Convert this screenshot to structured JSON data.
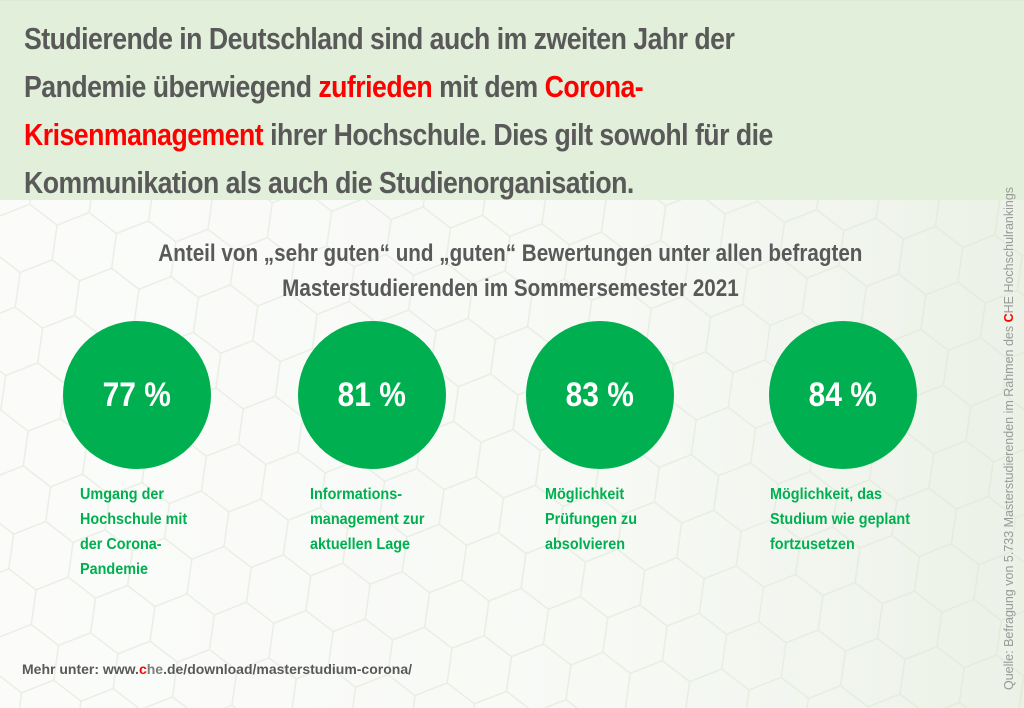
{
  "header": {
    "headline_parts": [
      {
        "text": "Studierende in Deutschland sind auch im zweiten Jahr der",
        "emphasis": false
      },
      {
        "text": "Pandemie überwiegend ",
        "emphasis": false
      },
      {
        "text": "zufrieden",
        "emphasis": true
      },
      {
        "text": " mit dem ",
        "emphasis": false
      },
      {
        "text": "Corona-",
        "emphasis": true
      },
      {
        "text": "Krisenmanagement",
        "emphasis": true
      },
      {
        "text": " ihrer Hochschule. Dies gilt sowohl für die",
        "emphasis": false
      },
      {
        "text": "Kommunikation als auch die Studienorganisation.",
        "emphasis": false
      }
    ],
    "background_color": "#e2efda",
    "emphasis_color": "#ff0000"
  },
  "subtitle": {
    "line1": "Anteil von „sehr guten“ und „guten“ Bewertungen unter allen befragten",
    "line2": "Masterstudierenden im Sommersemester 2021"
  },
  "metrics": [
    {
      "value": "77 %",
      "percent": 77,
      "label_lines": [
        "Umgang der",
        "Hochschule mit",
        "der Corona-",
        "Pandemie"
      ]
    },
    {
      "value": "81 %",
      "percent": 81,
      "label_lines": [
        "Informations-",
        "management zur",
        "aktuellen Lage"
      ]
    },
    {
      "value": "83 %",
      "percent": 83,
      "label_lines": [
        "Möglichkeit",
        "Prüfungen zu",
        "absolvieren"
      ]
    },
    {
      "value": "84 %",
      "percent": 84,
      "label_lines": [
        "Möglichkeit, das",
        "Studium wie geplant",
        "fortzusetzen"
      ]
    }
  ],
  "accent_color": "#00b050",
  "footer": {
    "prefix": "Mehr unter: www.",
    "c": "c",
    "he": "he",
    "suffix": ".de/download/masterstudium-corona/"
  },
  "source": {
    "prefix": "Quelle: Befragung von 5.733 Masterstudierenden im Rahmen des ",
    "c": "C",
    "suffix": "HE Hochschulrankings"
  }
}
